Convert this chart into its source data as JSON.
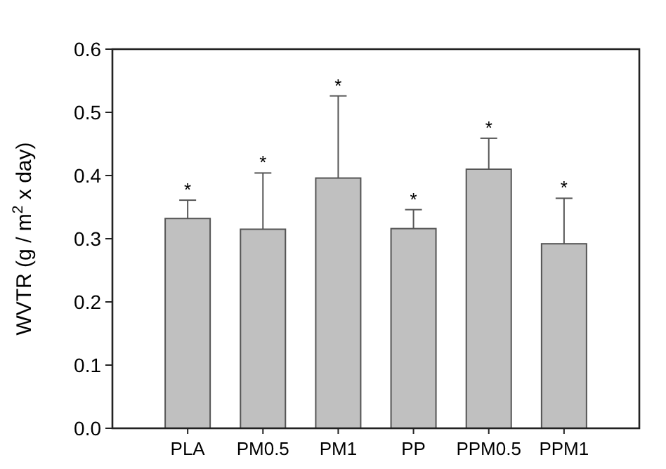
{
  "chart_data": {
    "type": "bar",
    "ylabel": "WVTR (g / m$^{2}$ x day)",
    "categories": [
      "PLA",
      "PM0.5",
      "PM1",
      "PP",
      "PPM0.5",
      "PPM1"
    ],
    "values": [
      0.332,
      0.315,
      0.396,
      0.316,
      0.41,
      0.292
    ],
    "errors": [
      [
        0.332,
        0.361
      ],
      [
        0.315,
        0.404
      ],
      [
        0.396,
        0.526
      ],
      [
        0.316,
        0.346
      ],
      [
        0.41,
        0.459
      ],
      [
        0.292,
        0.364
      ]
    ],
    "color": "#c0c0c0",
    "ylim": [
      0,
      0.6
    ],
    "yticks": [
      {
        "value": 0,
        "label": "0.0"
      },
      0.1,
      0.2,
      0.3,
      0.4,
      0.5,
      0.6
    ],
    "annotations": [
      {
        "text": "*",
        "x": "PLA",
        "y": 0.361
      },
      {
        "text": "*",
        "x": "PM0.5",
        "y": 0.404
      },
      {
        "text": "*",
        "x": "PM1",
        "y": 0.526
      },
      {
        "text": "*",
        "x": "PP",
        "y": 0.346
      },
      {
        "text": "*",
        "x": "PPM0.5",
        "y": 0.459
      },
      {
        "text": "*",
        "x": "PPM1",
        "y": 0.364
      }
    ]
  }
}
